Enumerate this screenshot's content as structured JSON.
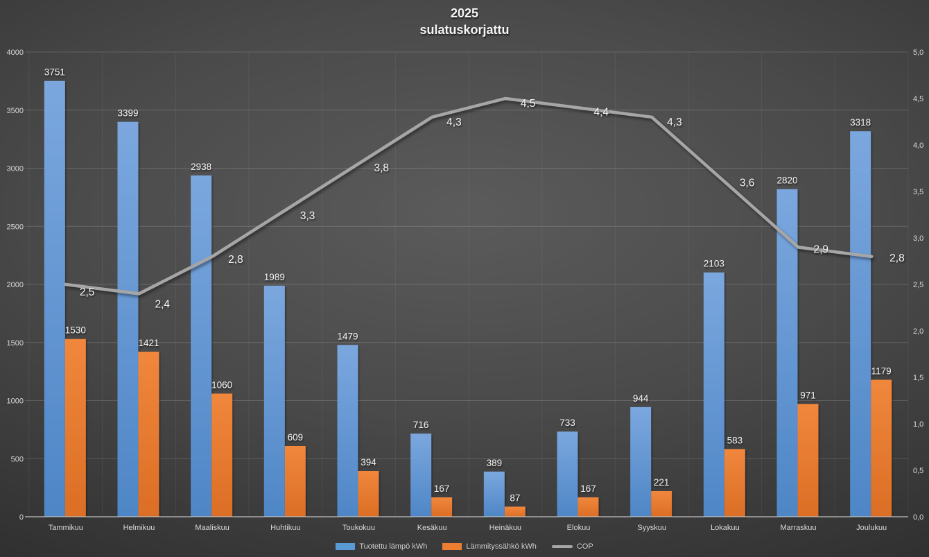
{
  "title": {
    "line1": "2025",
    "line2": "sulatuskorjattu"
  },
  "legend": {
    "items": [
      {
        "label": "Tuotettu lämpö kWh",
        "color": "#5B9BD5",
        "marker": "bar"
      },
      {
        "label": "Lämmityssähkö kWh",
        "color": "#ED7D31",
        "marker": "bar"
      },
      {
        "label": "COP",
        "color": "#A6A6A6",
        "marker": "line"
      }
    ]
  },
  "chart_data": {
    "type": "bar",
    "subtype": "bar+line-combo",
    "title": "2025 sulatuskorjattu",
    "categories": [
      "Tammikuu",
      "Helmikuu",
      "Maaliskuu",
      "Huhtikuu",
      "Toukokuu",
      "Kesäkuu",
      "Heinäkuu",
      "Elokuu",
      "Syyskuu",
      "Lokakuu",
      "Marraskuu",
      "Joulukuu"
    ],
    "series": [
      {
        "name": "Tuotettu lämpö kWh",
        "type": "bar",
        "axis": "left",
        "color": "#5B9BD5",
        "values": [
          3751,
          3399,
          2938,
          1989,
          1479,
          716,
          389,
          733,
          944,
          2103,
          2820,
          3318
        ],
        "data_labels": [
          "3751",
          "3399",
          "2938",
          "1989",
          "1479",
          "716",
          "389",
          "733",
          "944",
          "2103",
          "2820",
          "3318"
        ]
      },
      {
        "name": "Lämmityssähkö kWh",
        "type": "bar",
        "axis": "left",
        "color": "#ED7D31",
        "values": [
          1530,
          1421,
          1060,
          609,
          394,
          167,
          87,
          167,
          221,
          583,
          971,
          1179
        ],
        "data_labels": [
          "1530",
          "1421",
          "1060",
          "609",
          "394",
          "167",
          "87",
          "167",
          "221",
          "583",
          "971",
          "1179"
        ]
      },
      {
        "name": "COP",
        "type": "line",
        "axis": "right",
        "color": "#A6A6A6",
        "values": [
          2.5,
          2.4,
          2.8,
          3.3,
          3.8,
          4.3,
          4.5,
          4.4,
          4.3,
          3.6,
          2.9,
          2.8
        ],
        "data_labels": [
          "2,5",
          "2,4",
          "2,8",
          "3,3",
          "3,8",
          "4,3",
          "4,5",
          "4,4",
          "4,3",
          "3,6",
          "2,9",
          "2,8"
        ]
      }
    ],
    "left_axis": {
      "min": 0,
      "max": 4000,
      "step": 500,
      "ticks": [
        "0",
        "500",
        "1000",
        "1500",
        "2000",
        "2500",
        "3000",
        "3500",
        "4000"
      ]
    },
    "right_axis": {
      "min": 0,
      "max": 5,
      "step": 0.5,
      "ticks": [
        "0,0",
        "0,5",
        "1,0",
        "1,5",
        "2,0",
        "2,5",
        "3,0",
        "3,5",
        "4,0",
        "4,5",
        "5,0"
      ]
    },
    "grid": true,
    "legend_position": "bottom",
    "colors": {
      "background_center": "#5b5b5b",
      "background_edge": "#232323",
      "gridline": "#6e6e6e",
      "axis_line": "#bfbfbf",
      "tick_text": "#d9d9d9",
      "data_label_text": "#f0f0f0"
    }
  }
}
